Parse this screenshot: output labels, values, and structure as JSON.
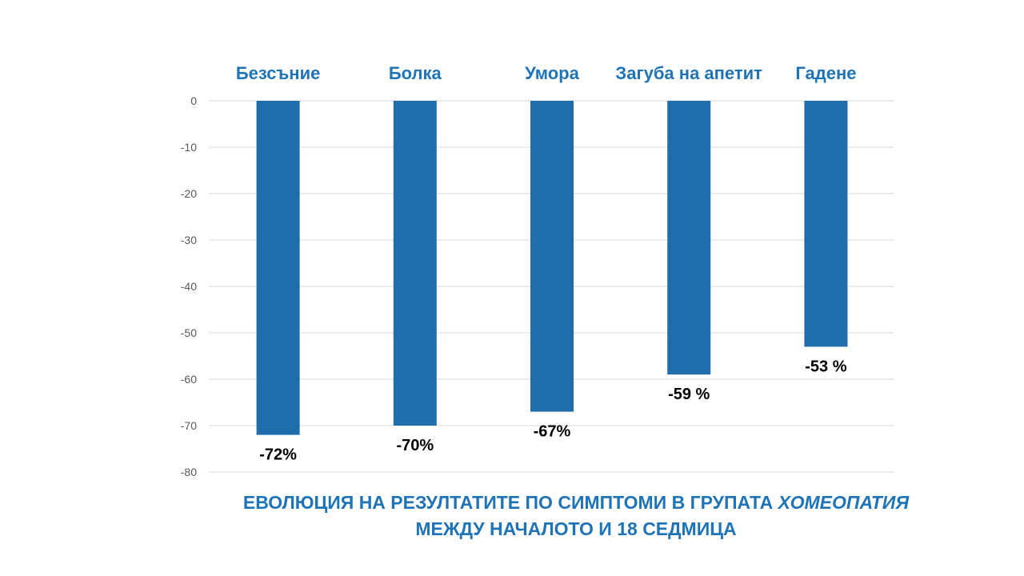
{
  "chart_data": {
    "type": "bar",
    "categories": [
      "Безсъние",
      "Болка",
      "Умора",
      "Загуба на апетит",
      "Гадене"
    ],
    "values": [
      -72,
      -70,
      -67,
      -59,
      -53
    ],
    "data_labels": [
      "-72%",
      "-70%",
      "-67%",
      "-59 %",
      "-53 %"
    ],
    "yticks": [
      0,
      -10,
      -20,
      -30,
      -40,
      -50,
      -60,
      -70,
      -80
    ],
    "ylim": [
      -80,
      0
    ],
    "grid": true,
    "legend": "none",
    "category_axis_position": "top",
    "bar_color": "#1f6dab",
    "category_color": "#1f73b7",
    "gridline_color": "#d9d9d9",
    "tick_color": "#595959",
    "label_color": "#000000"
  },
  "caption": {
    "line1_prefix": "ЕВОЛЮЦИЯ НА РЕЗУЛТАТИТЕ ПО СИМПТОМИ В ГРУПАТА ",
    "line1_emphasis": "ХОМЕОПАТИЯ",
    "line2": "МЕЖДУ НАЧАЛОТО И 18 СЕДМИЦА"
  }
}
